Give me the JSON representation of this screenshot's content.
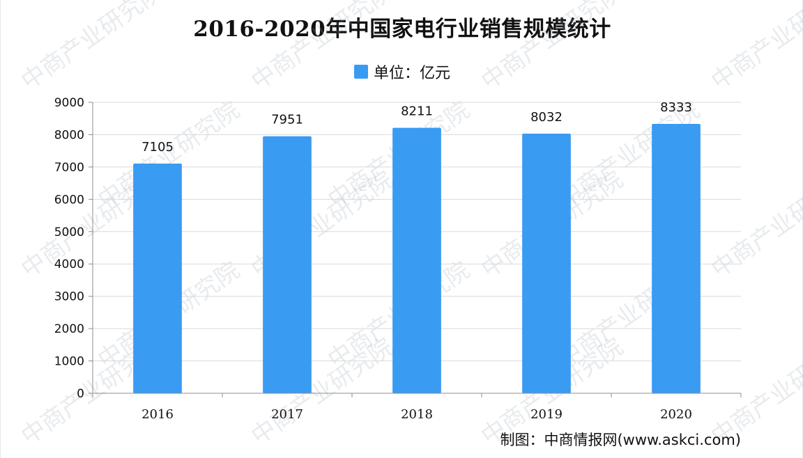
{
  "title": "2016-2020年中国家电行业销售规模统计",
  "legend": {
    "label": "单位：亿元"
  },
  "source": "制图：中商情报网(www.askci.com)",
  "watermark": {
    "text": "中商产业研究院"
  },
  "colors": {
    "bar": "#3a9bf3",
    "grid": "#d9d9d9",
    "axis": "#8c8c8c"
  },
  "chart_data": {
    "type": "bar",
    "title": "2016-2020年中国家电行业销售规模统计",
    "categories": [
      "2016",
      "2017",
      "2018",
      "2019",
      "2020"
    ],
    "series": [
      {
        "name": "单位：亿元",
        "values": [
          7105,
          7951,
          8211,
          8032,
          8333
        ]
      }
    ],
    "ylim": [
      0,
      9000
    ],
    "yticks": [
      0,
      1000,
      2000,
      3000,
      4000,
      5000,
      6000,
      7000,
      8000,
      9000
    ],
    "grid": true,
    "legend_position": "top-center",
    "data_labels": true
  }
}
